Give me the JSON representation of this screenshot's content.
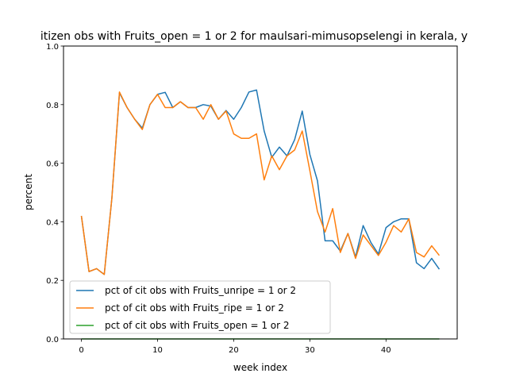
{
  "chart_data": {
    "type": "line",
    "title": "itizen obs with Fruits_open = 1 or 2 for maulsari-mimusopselengi in kerala, y",
    "xlabel": "week index",
    "ylabel": "percent",
    "xlim": [
      -2.35,
      49.35
    ],
    "ylim": [
      0.0,
      1.0
    ],
    "xticks": [
      0,
      10,
      20,
      30,
      40
    ],
    "xtick_labels": [
      "0",
      "10",
      "20",
      "30",
      "40"
    ],
    "yticks": [
      0.0,
      0.2,
      0.4,
      0.6,
      0.8,
      1.0
    ],
    "ytick_labels": [
      "0.0",
      "0.2",
      "0.4",
      "0.6",
      "0.8",
      "1.0"
    ],
    "grid": false,
    "legend_position": "lower-center",
    "x": [
      0,
      1,
      2,
      3,
      4,
      5,
      6,
      7,
      8,
      9,
      10,
      11,
      12,
      13,
      14,
      15,
      16,
      17,
      18,
      19,
      20,
      21,
      22,
      23,
      24,
      25,
      26,
      27,
      28,
      29,
      30,
      31,
      32,
      33,
      34,
      35,
      36,
      37,
      38,
      39,
      40,
      41,
      42,
      43,
      44,
      45,
      46,
      47
    ],
    "series": [
      {
        "name": "pct of cit obs with Fruits_unripe = 1 or 2",
        "color": "#1f77b4",
        "values": [
          0.42,
          0.23,
          0.24,
          0.22,
          0.48,
          0.84,
          0.79,
          0.75,
          0.72,
          0.8,
          0.835,
          0.842,
          0.79,
          0.81,
          0.79,
          0.79,
          0.8,
          0.795,
          0.75,
          0.78,
          0.75,
          0.79,
          0.843,
          0.85,
          0.71,
          0.62,
          0.655,
          0.625,
          0.68,
          0.778,
          0.63,
          0.54,
          0.335,
          0.335,
          0.3,
          0.36,
          0.28,
          0.387,
          0.33,
          0.29,
          0.38,
          0.4,
          0.41,
          0.41,
          0.26,
          0.24,
          0.275,
          0.238
        ]
      },
      {
        "name": "pct of cit obs with Fruits_ripe = 1 or 2",
        "color": "#ff7f0e",
        "values": [
          0.42,
          0.23,
          0.24,
          0.22,
          0.48,
          0.843,
          0.79,
          0.75,
          0.715,
          0.8,
          0.835,
          0.79,
          0.79,
          0.81,
          0.79,
          0.79,
          0.75,
          0.8,
          0.75,
          0.778,
          0.7,
          0.685,
          0.685,
          0.7,
          0.543,
          0.625,
          0.578,
          0.625,
          0.645,
          0.71,
          0.575,
          0.435,
          0.365,
          0.445,
          0.295,
          0.36,
          0.275,
          0.355,
          0.32,
          0.285,
          0.33,
          0.387,
          0.365,
          0.41,
          0.295,
          0.28,
          0.318,
          0.285
        ]
      },
      {
        "name": "pct of cit obs with Fruits_open = 1 or 2",
        "color": "#2ca02c",
        "values": [
          0,
          0,
          0,
          0,
          0,
          0,
          0,
          0,
          0,
          0,
          0,
          0,
          0,
          0,
          0,
          0,
          0,
          0,
          0,
          0,
          0,
          0,
          0,
          0,
          0,
          0,
          0,
          0,
          0,
          0,
          0,
          0,
          0,
          0,
          0,
          0,
          0,
          0,
          0,
          0,
          0,
          0,
          0,
          0,
          0,
          0,
          0,
          0
        ]
      }
    ]
  }
}
